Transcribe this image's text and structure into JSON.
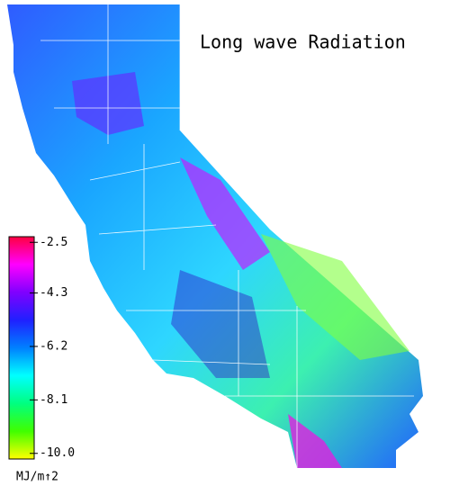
{
  "title": "Long wave Radiation",
  "colorbar": {
    "unit": "MJ/m↑2",
    "lim": [
      -10.2,
      -2.3
    ],
    "ticks": [
      -2.5,
      -4.3,
      -6.2,
      {
        "value": -10,
        "label": "-10.0"
      },
      -8.1
    ],
    "colors": [
      "#ff0040",
      "#ff00ff",
      "#8000ff",
      "#2020ff",
      "#0080ff",
      "#00ffff",
      "#00ff80",
      "#40ff00",
      "#ffff00"
    ]
  }
}
